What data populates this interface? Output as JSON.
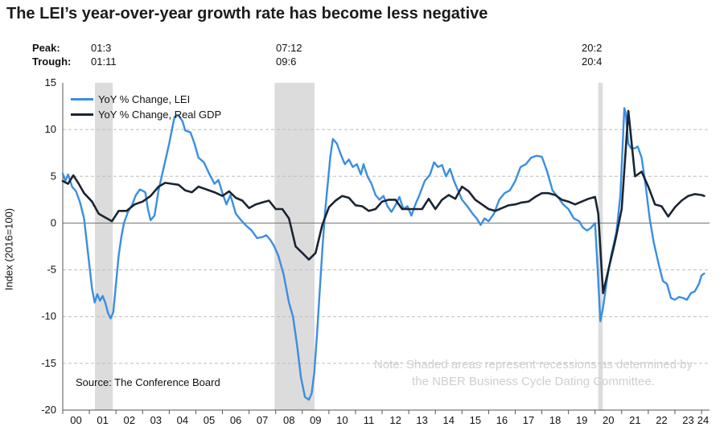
{
  "chart_data": {
    "type": "line",
    "title": "The LEI’s year-over-year growth rate has become less negative",
    "xlabel": "",
    "ylabel": "Index (2016=100)",
    "ylim": [
      -20,
      15
    ],
    "yticks": [
      15,
      10,
      5,
      0,
      -5,
      -10,
      -15,
      -20
    ],
    "xlim": [
      2000.0,
      2024.3
    ],
    "xtick_labels": [
      "00",
      "01",
      "02",
      "03",
      "04",
      "05",
      "06",
      "07",
      "08",
      "09",
      "10",
      "11",
      "12",
      "13",
      "14",
      "15",
      "16",
      "17",
      "18",
      "19",
      "20",
      "21",
      "22",
      "23",
      "24"
    ],
    "grid": "horizontal dashed",
    "legend": "top-left",
    "recessions": {
      "peak_label": "Peak:",
      "trough_label": "Trough:",
      "items": [
        {
          "peak": "01:3",
          "trough": "01:11",
          "start": 2001.21,
          "end": 2001.88
        },
        {
          "peak": "07:12",
          "trough": "09:6",
          "start": 2007.96,
          "end": 2009.46
        },
        {
          "peak": "20:2",
          "trough": "20:4",
          "start": 2020.12,
          "end": 2020.29
        }
      ]
    },
    "series": [
      {
        "name": "YoY % Change, LEI",
        "color": "#3b8ee0",
        "points": [
          [
            2000.0,
            5.3
          ],
          [
            2000.1,
            4.5
          ],
          [
            2000.2,
            5.2
          ],
          [
            2000.35,
            3.9
          ],
          [
            2000.5,
            3.4
          ],
          [
            2000.65,
            2.2
          ],
          [
            2000.8,
            0.5
          ],
          [
            2000.9,
            -2.0
          ],
          [
            2001.0,
            -4.5
          ],
          [
            2001.1,
            -7.0
          ],
          [
            2001.2,
            -8.5
          ],
          [
            2001.3,
            -7.6
          ],
          [
            2001.4,
            -8.3
          ],
          [
            2001.5,
            -7.8
          ],
          [
            2001.6,
            -8.5
          ],
          [
            2001.7,
            -9.6
          ],
          [
            2001.8,
            -10.2
          ],
          [
            2001.9,
            -9.5
          ],
          [
            2002.0,
            -6.5
          ],
          [
            2002.1,
            -3.5
          ],
          [
            2002.2,
            -1.5
          ],
          [
            2002.3,
            0.0
          ],
          [
            2002.45,
            1.2
          ],
          [
            2002.6,
            1.9
          ],
          [
            2002.75,
            3.0
          ],
          [
            2002.9,
            3.6
          ],
          [
            2003.1,
            3.3
          ],
          [
            2003.2,
            1.5
          ],
          [
            2003.3,
            0.3
          ],
          [
            2003.45,
            0.8
          ],
          [
            2003.6,
            3.5
          ],
          [
            2003.8,
            6.0
          ],
          [
            2004.0,
            8.5
          ],
          [
            2004.2,
            11.4
          ],
          [
            2004.35,
            11.5
          ],
          [
            2004.5,
            10.9
          ],
          [
            2004.6,
            9.9
          ],
          [
            2004.8,
            9.7
          ],
          [
            2004.95,
            8.5
          ],
          [
            2005.1,
            7.0
          ],
          [
            2005.3,
            6.5
          ],
          [
            2005.5,
            5.3
          ],
          [
            2005.7,
            4.2
          ],
          [
            2005.85,
            4.6
          ],
          [
            2006.0,
            3.2
          ],
          [
            2006.15,
            2.0
          ],
          [
            2006.3,
            3.0
          ],
          [
            2006.5,
            1.0
          ],
          [
            2006.7,
            0.3
          ],
          [
            2006.9,
            -0.3
          ],
          [
            2007.1,
            -0.8
          ],
          [
            2007.3,
            -1.6
          ],
          [
            2007.5,
            -1.5
          ],
          [
            2007.65,
            -1.3
          ],
          [
            2007.8,
            -1.8
          ],
          [
            2007.95,
            -2.5
          ],
          [
            2008.1,
            -3.5
          ],
          [
            2008.3,
            -5.5
          ],
          [
            2008.5,
            -8.5
          ],
          [
            2008.65,
            -10.0
          ],
          [
            2008.8,
            -13.0
          ],
          [
            2008.95,
            -16.5
          ],
          [
            2009.1,
            -18.6
          ],
          [
            2009.25,
            -18.9
          ],
          [
            2009.35,
            -18.2
          ],
          [
            2009.45,
            -16.0
          ],
          [
            2009.55,
            -12.0
          ],
          [
            2009.65,
            -7.5
          ],
          [
            2009.75,
            -3.0
          ],
          [
            2009.85,
            1.0
          ],
          [
            2009.95,
            4.0
          ],
          [
            2010.05,
            7.0
          ],
          [
            2010.15,
            9.0
          ],
          [
            2010.3,
            8.5
          ],
          [
            2010.45,
            7.3
          ],
          [
            2010.6,
            6.3
          ],
          [
            2010.75,
            6.8
          ],
          [
            2010.9,
            6.0
          ],
          [
            2011.05,
            6.3
          ],
          [
            2011.2,
            5.2
          ],
          [
            2011.3,
            6.3
          ],
          [
            2011.45,
            5.0
          ],
          [
            2011.6,
            4.2
          ],
          [
            2011.75,
            3.0
          ],
          [
            2011.9,
            2.5
          ],
          [
            2012.05,
            2.9
          ],
          [
            2012.2,
            1.8
          ],
          [
            2012.35,
            1.2
          ],
          [
            2012.5,
            1.9
          ],
          [
            2012.65,
            2.8
          ],
          [
            2012.8,
            1.5
          ],
          [
            2012.95,
            1.8
          ],
          [
            2013.1,
            0.8
          ],
          [
            2013.25,
            2.0
          ],
          [
            2013.4,
            3.0
          ],
          [
            2013.6,
            4.5
          ],
          [
            2013.8,
            5.2
          ],
          [
            2013.95,
            6.5
          ],
          [
            2014.1,
            6.0
          ],
          [
            2014.25,
            6.2
          ],
          [
            2014.4,
            5.0
          ],
          [
            2014.55,
            5.8
          ],
          [
            2014.7,
            4.5
          ],
          [
            2014.85,
            3.5
          ],
          [
            2015.0,
            2.5
          ],
          [
            2015.2,
            1.8
          ],
          [
            2015.4,
            1.0
          ],
          [
            2015.55,
            0.5
          ],
          [
            2015.7,
            -0.2
          ],
          [
            2015.85,
            0.5
          ],
          [
            2016.0,
            0.2
          ],
          [
            2016.2,
            1.0
          ],
          [
            2016.4,
            2.5
          ],
          [
            2016.6,
            3.2
          ],
          [
            2016.8,
            3.5
          ],
          [
            2017.0,
            4.5
          ],
          [
            2017.2,
            6.0
          ],
          [
            2017.4,
            6.3
          ],
          [
            2017.6,
            7.0
          ],
          [
            2017.8,
            7.2
          ],
          [
            2018.0,
            7.1
          ],
          [
            2018.2,
            5.5
          ],
          [
            2018.4,
            3.5
          ],
          [
            2018.6,
            2.8
          ],
          [
            2018.8,
            2.0
          ],
          [
            2019.0,
            1.5
          ],
          [
            2019.2,
            0.5
          ],
          [
            2019.4,
            0.2
          ],
          [
            2019.55,
            -0.5
          ],
          [
            2019.7,
            -0.8
          ],
          [
            2019.85,
            -0.5
          ],
          [
            2020.0,
            0.0
          ],
          [
            2020.1,
            -5.0
          ],
          [
            2020.2,
            -10.5
          ],
          [
            2020.3,
            -9.0
          ],
          [
            2020.45,
            -6.0
          ],
          [
            2020.6,
            -3.5
          ],
          [
            2020.8,
            -1.0
          ],
          [
            2020.95,
            3.0
          ],
          [
            2021.1,
            12.3
          ],
          [
            2021.15,
            11.8
          ],
          [
            2021.25,
            8.5
          ],
          [
            2021.35,
            8.0
          ],
          [
            2021.5,
            8.0
          ],
          [
            2021.6,
            8.2
          ],
          [
            2021.75,
            7.0
          ],
          [
            2021.9,
            4.0
          ],
          [
            2022.05,
            0.5
          ],
          [
            2022.2,
            -2.0
          ],
          [
            2022.4,
            -4.5
          ],
          [
            2022.55,
            -6.2
          ],
          [
            2022.7,
            -6.5
          ],
          [
            2022.85,
            -8.0
          ],
          [
            2023.0,
            -8.2
          ],
          [
            2023.15,
            -7.9
          ],
          [
            2023.3,
            -8.0
          ],
          [
            2023.45,
            -8.2
          ],
          [
            2023.6,
            -7.5
          ],
          [
            2023.75,
            -7.3
          ],
          [
            2023.9,
            -6.5
          ],
          [
            2024.0,
            -5.6
          ],
          [
            2024.1,
            -5.4
          ]
        ]
      },
      {
        "name": "YoY % Change, Real GDP",
        "color": "#1a2433",
        "points": [
          [
            2000.0,
            4.5
          ],
          [
            2000.2,
            4.2
          ],
          [
            2000.4,
            5.1
          ],
          [
            2000.6,
            4.2
          ],
          [
            2000.8,
            3.2
          ],
          [
            2001.1,
            2.3
          ],
          [
            2001.35,
            1.0
          ],
          [
            2001.6,
            0.6
          ],
          [
            2001.85,
            0.2
          ],
          [
            2002.1,
            1.3
          ],
          [
            2002.4,
            1.3
          ],
          [
            2002.7,
            2.0
          ],
          [
            2003.0,
            2.3
          ],
          [
            2003.3,
            2.9
          ],
          [
            2003.6,
            3.9
          ],
          [
            2003.85,
            4.3
          ],
          [
            2004.1,
            4.2
          ],
          [
            2004.35,
            4.1
          ],
          [
            2004.6,
            3.5
          ],
          [
            2004.85,
            3.3
          ],
          [
            2005.1,
            3.9
          ],
          [
            2005.4,
            3.6
          ],
          [
            2005.7,
            3.3
          ],
          [
            2006.0,
            2.9
          ],
          [
            2006.25,
            3.4
          ],
          [
            2006.5,
            2.7
          ],
          [
            2006.75,
            2.4
          ],
          [
            2007.0,
            1.6
          ],
          [
            2007.25,
            2.0
          ],
          [
            2007.5,
            2.2
          ],
          [
            2007.75,
            2.4
          ],
          [
            2008.0,
            1.5
          ],
          [
            2008.25,
            1.5
          ],
          [
            2008.5,
            0.5
          ],
          [
            2008.75,
            -2.5
          ],
          [
            2009.0,
            -3.2
          ],
          [
            2009.25,
            -3.9
          ],
          [
            2009.5,
            -3.2
          ],
          [
            2009.75,
            -0.2
          ],
          [
            2010.0,
            1.7
          ],
          [
            2010.25,
            2.4
          ],
          [
            2010.5,
            2.9
          ],
          [
            2010.75,
            2.7
          ],
          [
            2011.0,
            1.9
          ],
          [
            2011.25,
            1.8
          ],
          [
            2011.5,
            1.3
          ],
          [
            2011.75,
            1.5
          ],
          [
            2012.0,
            2.3
          ],
          [
            2012.25,
            2.5
          ],
          [
            2012.5,
            2.5
          ],
          [
            2012.75,
            1.5
          ],
          [
            2013.0,
            1.5
          ],
          [
            2013.25,
            1.5
          ],
          [
            2013.5,
            1.5
          ],
          [
            2013.75,
            2.6
          ],
          [
            2014.0,
            1.5
          ],
          [
            2014.25,
            2.5
          ],
          [
            2014.5,
            3.0
          ],
          [
            2014.75,
            2.6
          ],
          [
            2015.0,
            3.9
          ],
          [
            2015.25,
            3.4
          ],
          [
            2015.5,
            2.5
          ],
          [
            2015.75,
            2.0
          ],
          [
            2016.0,
            1.5
          ],
          [
            2016.25,
            1.3
          ],
          [
            2016.5,
            1.6
          ],
          [
            2016.75,
            1.9
          ],
          [
            2017.0,
            2.0
          ],
          [
            2017.25,
            2.2
          ],
          [
            2017.5,
            2.3
          ],
          [
            2017.75,
            2.8
          ],
          [
            2018.0,
            3.2
          ],
          [
            2018.25,
            3.2
          ],
          [
            2018.5,
            3.0
          ],
          [
            2018.75,
            2.5
          ],
          [
            2019.0,
            2.3
          ],
          [
            2019.25,
            2.0
          ],
          [
            2019.5,
            2.3
          ],
          [
            2019.75,
            2.6
          ],
          [
            2020.0,
            2.8
          ],
          [
            2020.12,
            1.0
          ],
          [
            2020.3,
            -7.5
          ],
          [
            2020.5,
            -5.0
          ],
          [
            2020.75,
            -2.0
          ],
          [
            2021.0,
            1.5
          ],
          [
            2021.25,
            12.0
          ],
          [
            2021.5,
            5.0
          ],
          [
            2021.75,
            5.5
          ],
          [
            2022.0,
            3.9
          ],
          [
            2022.25,
            2.0
          ],
          [
            2022.5,
            1.8
          ],
          [
            2022.75,
            0.7
          ],
          [
            2023.0,
            1.7
          ],
          [
            2023.25,
            2.4
          ],
          [
            2023.5,
            2.9
          ],
          [
            2023.75,
            3.1
          ],
          [
            2024.0,
            3.0
          ],
          [
            2024.1,
            2.9
          ]
        ]
      }
    ],
    "source": "Source: The Conference Board",
    "note": [
      "Note: Shaded areas represent recessions as determined by",
      "the NBER Business Cycle Dating Committee."
    ]
  }
}
